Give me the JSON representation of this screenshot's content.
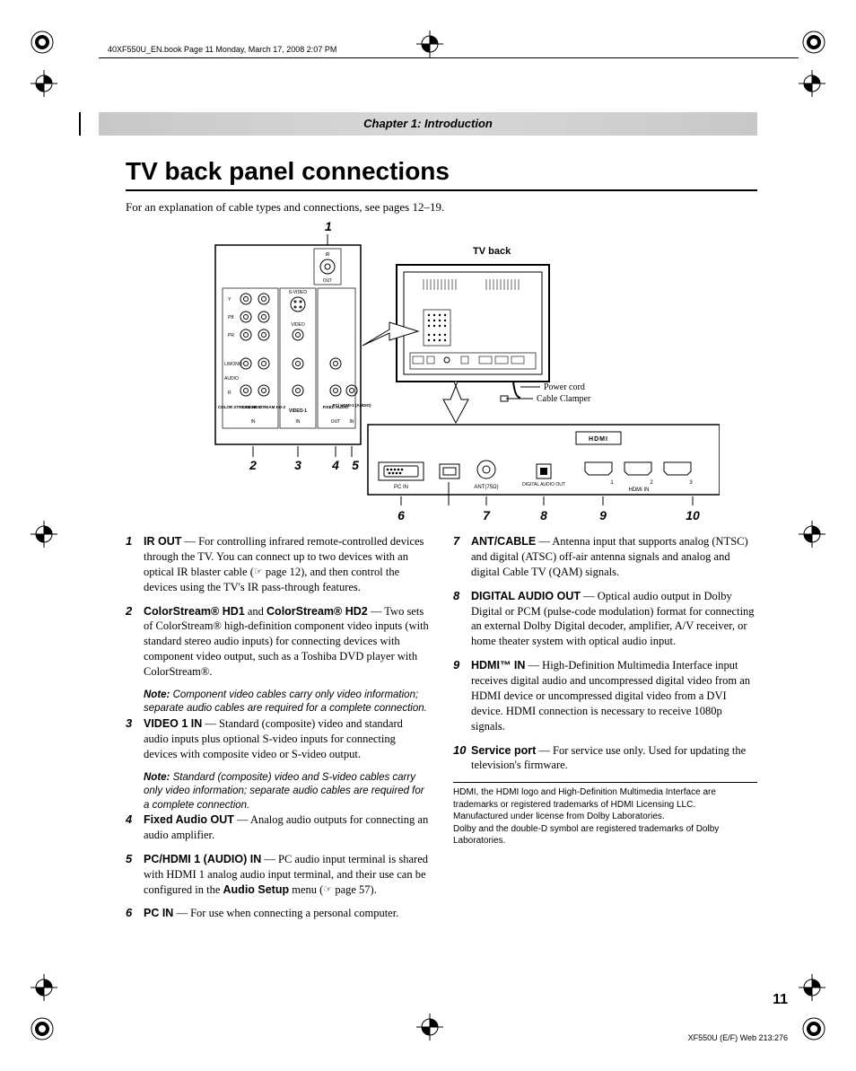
{
  "meta": {
    "header_text": "40XF550U_EN.book  Page 11  Monday, March 17, 2008  2:07 PM",
    "chapter_label": "Chapter 1: Introduction",
    "page_number": "11",
    "footer_code": "XF550U (E/F) Web 213:276"
  },
  "title": "TV back panel connections",
  "intro": "For an explanation of cable types and connections, see pages 12–19.",
  "figure": {
    "tv_back_label": "TV back",
    "power_cord_label": "Power cord",
    "cable_clamper_label": "Cable Clamper",
    "callouts_top": [
      "1"
    ],
    "callouts_mid": [
      "2",
      "3",
      "4",
      "5"
    ],
    "callouts_bottom": [
      "6",
      "7",
      "8",
      "9",
      "10"
    ],
    "panel_labels": {
      "ir": "IR",
      "out": "OUT",
      "y": "Y",
      "pb": "PB",
      "pr": "PR",
      "svideo": "S-VIDEO",
      "video": "VIDEO",
      "lmono": "L/MONO",
      "audio": "AUDIO",
      "r": "R",
      "cs1": "COLOR STREAM HD-1",
      "cs2": "COLOR STREAM HD-2",
      "video1": "VIDEO-1",
      "fixed_audio": "FIXED AUDIO",
      "pc_hdmi": "PC/ HDMI-1 (AUDIO)",
      "in": "IN",
      "out2": "OUT",
      "pcin": "PC IN",
      "ant": "ANT(75Ω)",
      "digital_audio_out": "DIGITAL AUDIO OUT",
      "hdmi": "HDMI",
      "hdmi_in": "HDMI IN",
      "n1": "1",
      "n2": "2",
      "n3": "3"
    }
  },
  "items_left": [
    {
      "num": "1",
      "lead": "IR OUT",
      "text": " — For controlling infrared remote-controlled devices through the TV. You can connect up to two devices with an optical IR blaster cable (",
      "ref": "page 12",
      "tail": "), and then control the devices using the TV's IR pass-through features."
    },
    {
      "num": "2",
      "lead": "ColorStream® HD1",
      "mid": " and ",
      "lead2": "ColorStream® HD2",
      "text": " — Two sets of ColorStream® high-definition component video inputs (with standard stereo audio inputs) for connecting devices with component video output, such as a Toshiba DVD player with ColorStream®.",
      "note": "Component video cables carry only video information; separate audio cables are required for a complete connection."
    },
    {
      "num": "3",
      "lead": "VIDEO 1 IN",
      "text": " — Standard (composite) video and standard audio inputs plus optional S-video inputs for connecting devices with composite video or S-video output.",
      "note": "Standard (composite) video and S-video cables carry only video information; separate audio cables are required for a complete connection."
    },
    {
      "num": "4",
      "lead": "Fixed Audio OUT",
      "text": " — Analog audio outputs for connecting an audio amplifier."
    },
    {
      "num": "5",
      "lead": "PC/HDMI 1 (AUDIO) IN",
      "text": " — PC audio input terminal is shared with HDMI 1 analog audio input terminal, and their use can be configured in the ",
      "bold_ref": "Audio Setup",
      "tail_text": " menu (",
      "ref": "page 57",
      "tail2": ")."
    },
    {
      "num": "6",
      "lead": "PC IN",
      "text": " — For use when connecting a personal computer."
    }
  ],
  "items_right": [
    {
      "num": "7",
      "lead": "ANT/CABLE",
      "text": " — Antenna input that supports analog (NTSC) and digital (ATSC) off-air antenna signals and analog and digital Cable TV (QAM) signals."
    },
    {
      "num": "8",
      "lead": "DIGITAL AUDIO OUT",
      "text": " — Optical audio output in Dolby Digital or PCM (pulse-code modulation) format for connecting an external Dolby Digital decoder, amplifier, A/V receiver, or home theater system with optical audio input."
    },
    {
      "num": "9",
      "lead": "HDMI™ IN",
      "text": " — High-Definition Multimedia Interface input receives digital audio and uncompressed digital video from an HDMI device or uncompressed digital video from a DVI device. HDMI connection is necessary to receive 1080p signals."
    },
    {
      "num": "10",
      "lead": "Service port",
      "text": " — For service use only. Used for updating the television's firmware."
    }
  ],
  "footnote_lines": [
    "HDMI, the HDMI logo and High-Definition Multimedia Interface are trademarks or registered trademarks of HDMI Licensing LLC.",
    "Manufactured under license from Dolby Laboratories.",
    "Dolby and the double-D symbol are registered trademarks of Dolby Laboratories."
  ],
  "note_label": "Note:",
  "hand_glyph": "☞"
}
